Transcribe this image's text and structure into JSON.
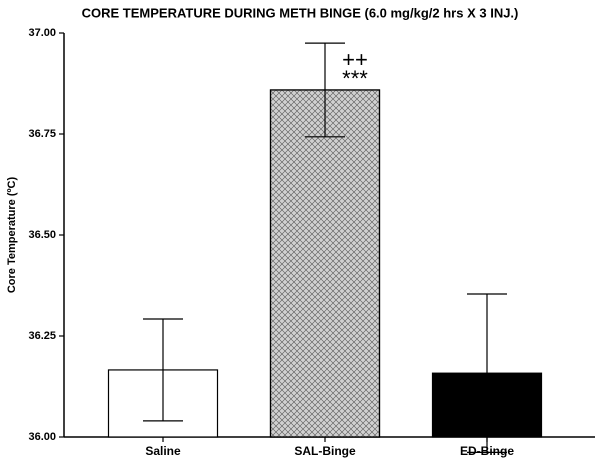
{
  "chart_data": {
    "type": "bar",
    "title": "CORE TEMPERATURE DURING METH BINGE (6.0 mg/kg/2 hrs X 3 INJ.)",
    "y_label": "Core Temperature (ºC)",
    "categories": [
      "Saline",
      "SAL-Binge",
      "ED-Binge"
    ],
    "values": [
      36.166,
      36.859,
      36.158
    ],
    "errors": [
      0.126,
      0.116,
      0.196
    ],
    "colors": [
      "#ffffff",
      "#d0d0d0",
      "#000000"
    ],
    "patterns": [
      "none",
      "crosshatch",
      "none"
    ],
    "ylim": [
      36,
      37
    ],
    "yticks": [
      {
        "value": 36,
        "label": "36.00"
      },
      {
        "value": 36.25,
        "label": "36.25"
      },
      {
        "value": 36.5,
        "label": "36.50"
      },
      {
        "value": 36.75,
        "label": "36.75"
      },
      {
        "value": 37,
        "label": "37.00"
      }
    ],
    "annotations": [
      {
        "text": "++",
        "category": 1
      },
      {
        "text": "***",
        "category": 1
      }
    ],
    "grid": false
  }
}
